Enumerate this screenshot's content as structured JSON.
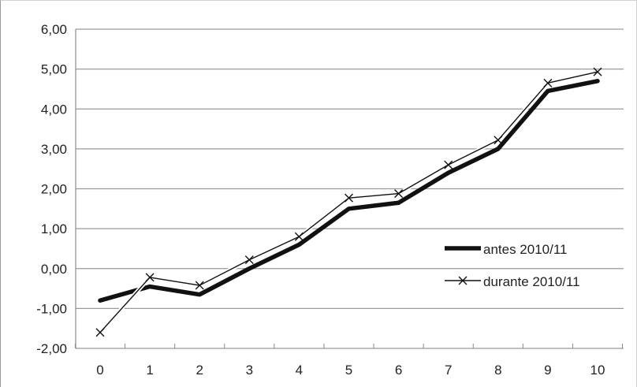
{
  "chart_data": {
    "type": "line",
    "title": "",
    "xlabel": "",
    "ylabel": "",
    "x": [
      0,
      1,
      2,
      3,
      4,
      5,
      6,
      7,
      8,
      9,
      10
    ],
    "x_tick_labels": [
      "0",
      "1",
      "2",
      "3",
      "4",
      "5",
      "6",
      "7",
      "8",
      "9",
      "10"
    ],
    "y_tick_labels": [
      "-2,00",
      "-1,00",
      "0,00",
      "1,00",
      "2,00",
      "3,00",
      "4,00",
      "5,00",
      "6,00"
    ],
    "y_ticks": [
      -2,
      -1,
      0,
      1,
      2,
      3,
      4,
      5,
      6
    ],
    "ylim": [
      -2,
      6
    ],
    "grid": "horizontal",
    "legend_position": "right",
    "series": [
      {
        "name": "antes 2010/11",
        "style": "thick-line",
        "color": "#111111",
        "values": [
          -0.8,
          -0.45,
          -0.65,
          0.0,
          0.6,
          1.5,
          1.65,
          2.4,
          3.0,
          4.45,
          4.7
        ]
      },
      {
        "name": "durante 2010/11",
        "style": "thin-line-x-markers",
        "color": "#111111",
        "values": [
          -1.6,
          -0.22,
          -0.42,
          0.22,
          0.8,
          1.77,
          1.88,
          2.6,
          3.22,
          4.65,
          4.93
        ]
      }
    ]
  }
}
